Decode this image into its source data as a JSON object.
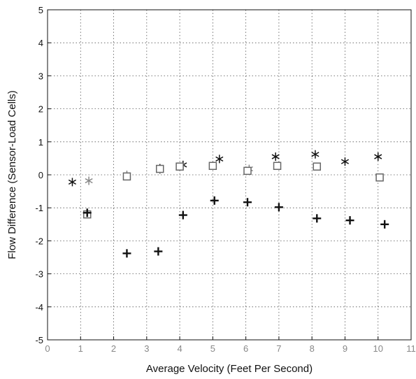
{
  "chart_data": {
    "type": "scatter",
    "xlabel": "Average Velocity (Feet Per Second)",
    "ylabel": "Flow Difference (Sensor-Load Cells)",
    "xlim": [
      0,
      11
    ],
    "ylim": [
      -5,
      5
    ],
    "x_ticks": [
      "0",
      "1",
      "2",
      "3",
      "4",
      "5",
      "6",
      "7",
      "8",
      "9",
      "10",
      "11"
    ],
    "y_ticks": [
      "-5",
      "-4",
      "-3",
      "-2",
      "-1",
      "0",
      "1",
      "2",
      "3",
      "4",
      "5"
    ],
    "grid": true,
    "series": [
      {
        "marker": "asterisk",
        "color": "#111111",
        "points": [
          [
            0.75,
            -0.22
          ],
          [
            3.4,
            0.2
          ],
          [
            4.1,
            0.3
          ],
          [
            5.2,
            0.48
          ],
          [
            6.9,
            0.55
          ],
          [
            8.1,
            0.62
          ],
          [
            9.0,
            0.4
          ],
          [
            10.0,
            0.55
          ]
        ]
      },
      {
        "marker": "asterisk",
        "color": "#888888",
        "points": [
          [
            1.25,
            -0.18
          ],
          [
            2.4,
            0.0
          ],
          [
            3.4,
            0.15
          ],
          [
            6.1,
            0.18
          ]
        ]
      },
      {
        "marker": "square",
        "color": "#666666",
        "points": [
          [
            1.2,
            -1.2
          ],
          [
            2.4,
            -0.05
          ],
          [
            3.4,
            0.18
          ],
          [
            4.0,
            0.25
          ],
          [
            5.0,
            0.27
          ],
          [
            6.05,
            0.12
          ],
          [
            6.95,
            0.27
          ],
          [
            8.15,
            0.25
          ],
          [
            10.05,
            -0.08
          ]
        ]
      },
      {
        "marker": "plus",
        "color": "#111111",
        "points": [
          [
            1.2,
            -1.15
          ],
          [
            2.4,
            -2.38
          ],
          [
            3.35,
            -2.32
          ],
          [
            4.1,
            -1.22
          ],
          [
            5.05,
            -0.78
          ],
          [
            6.05,
            -0.83
          ],
          [
            7.0,
            -0.98
          ],
          [
            8.15,
            -1.32
          ],
          [
            9.15,
            -1.38
          ],
          [
            10.2,
            -1.5
          ]
        ]
      }
    ]
  }
}
